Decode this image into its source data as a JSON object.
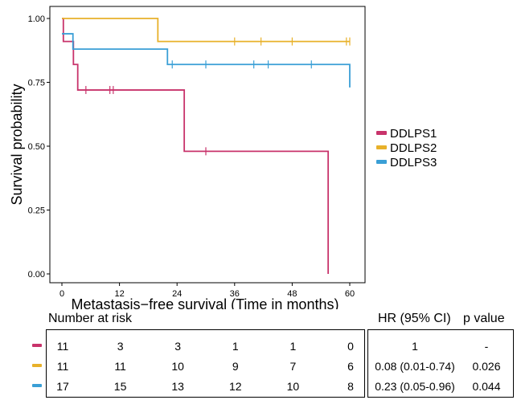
{
  "chart_data": {
    "type": "line",
    "subtype": "kaplan-meier",
    "title": "",
    "xlabel": "Metastasis−free survival (Time in months)",
    "ylabel": "Survival probability",
    "xlim": [
      0,
      60
    ],
    "ylim": [
      0,
      1
    ],
    "x_ticks": [
      "0",
      "12",
      "24",
      "36",
      "48",
      "60"
    ],
    "y_ticks": [
      "0.00",
      "0.25",
      "0.50",
      "0.75",
      "1.00"
    ],
    "legend_position": "right",
    "series": [
      {
        "name": "DDLPS1",
        "color": "#c8336b",
        "steps": [
          [
            0,
            1.0
          ],
          [
            0.3,
            0.91
          ],
          [
            2.4,
            0.82
          ],
          [
            3.3,
            0.72
          ],
          [
            25.5,
            0.48
          ],
          [
            55.5,
            0.0
          ]
        ],
        "end_x": 55.5,
        "censor": [
          [
            5,
            0.72
          ],
          [
            10,
            0.72
          ],
          [
            10.7,
            0.72
          ],
          [
            30,
            0.48
          ]
        ]
      },
      {
        "name": "DDLPS2",
        "color": "#e8b12a",
        "steps": [
          [
            0,
            1.0
          ],
          [
            20,
            0.91
          ]
        ],
        "end_x": 60,
        "censor": [
          [
            36,
            0.91
          ],
          [
            41.5,
            0.91
          ],
          [
            48,
            0.91
          ],
          [
            59.3,
            0.91
          ],
          [
            60,
            0.91
          ]
        ]
      },
      {
        "name": "DDLPS3",
        "color": "#3a9fd6",
        "steps": [
          [
            0,
            0.94
          ],
          [
            2.3,
            0.88
          ],
          [
            22,
            0.82
          ],
          [
            60,
            0.73
          ]
        ],
        "end_x": 60,
        "censor": [
          [
            23,
            0.82
          ],
          [
            30,
            0.82
          ],
          [
            40,
            0.82
          ],
          [
            43,
            0.82
          ],
          [
            52,
            0.82
          ]
        ]
      }
    ]
  },
  "risk_table": {
    "title": "Number at risk",
    "times": [
      0,
      12,
      24,
      36,
      48,
      60
    ],
    "rows": [
      {
        "color": "#c8336b",
        "values": [
          "11",
          "3",
          "3",
          "1",
          "1",
          "0"
        ]
      },
      {
        "color": "#e8b12a",
        "values": [
          "11",
          "11",
          "10",
          "9",
          "7",
          "6"
        ]
      },
      {
        "color": "#3a9fd6",
        "values": [
          "17",
          "15",
          "13",
          "12",
          "10",
          "8"
        ]
      }
    ]
  },
  "hr_table": {
    "hr_header": "HR (95% CI)",
    "p_header": "p value",
    "rows": [
      {
        "hr": "1",
        "p": "-"
      },
      {
        "hr": "0.08 (0.01-0.74)",
        "p": "0.026"
      },
      {
        "hr": "0.23 (0.05-0.96)",
        "p": "0.044"
      }
    ]
  }
}
